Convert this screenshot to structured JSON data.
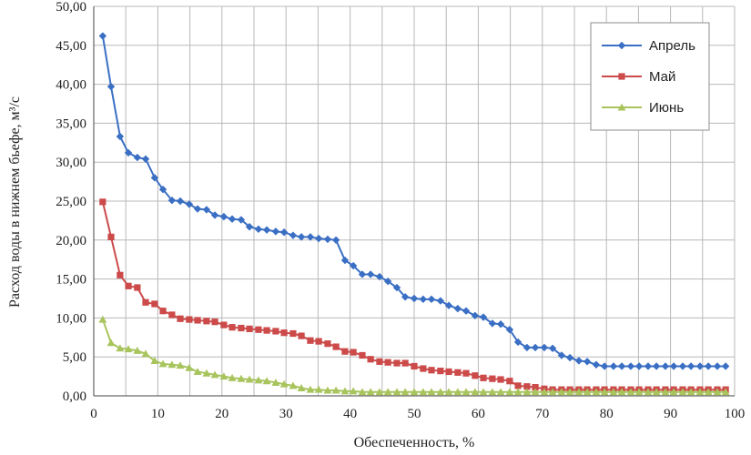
{
  "chart_data": {
    "type": "line",
    "xlabel": "Обеспеченность, %",
    "ylabel": "Расход воды в нижнем бьефе, м³/с",
    "xlim": [
      0,
      100
    ],
    "ylim": [
      0,
      50
    ],
    "grid": true,
    "legend_position": "top-right",
    "x_ticks": [
      "0",
      "10",
      "20",
      "30",
      "40",
      "50",
      "60",
      "70",
      "80",
      "90",
      "100"
    ],
    "y_ticks": [
      "0,00",
      "5,00",
      "10,00",
      "15,00",
      "20,00",
      "25,00",
      "30,00",
      "35,00",
      "40,00",
      "45,00",
      "50,00"
    ],
    "x": [
      1.4,
      2.7,
      4.1,
      5.4,
      6.8,
      8.1,
      9.5,
      10.8,
      12.2,
      13.5,
      14.9,
      16.2,
      17.6,
      18.9,
      20.3,
      21.6,
      23.0,
      24.3,
      25.7,
      27.0,
      28.4,
      29.7,
      31.1,
      32.4,
      33.8,
      35.1,
      36.5,
      37.8,
      39.2,
      40.5,
      41.9,
      43.2,
      44.6,
      45.9,
      47.3,
      48.6,
      50.0,
      51.4,
      52.7,
      54.1,
      55.4,
      56.8,
      58.1,
      59.5,
      60.8,
      62.2,
      63.5,
      64.9,
      66.2,
      67.6,
      68.9,
      70.3,
      71.6,
      73.0,
      74.3,
      75.7,
      77.0,
      78.4,
      79.7,
      81.1,
      82.4,
      83.8,
      85.1,
      86.5,
      87.8,
      89.2,
      90.5,
      91.9,
      93.2,
      94.6,
      95.9,
      97.3,
      98.6
    ],
    "series": [
      {
        "name": "Апрель",
        "color": "#3a6fc4",
        "marker": "diamond",
        "values": [
          46.2,
          39.7,
          33.3,
          31.2,
          30.6,
          30.4,
          28.0,
          26.5,
          25.1,
          25.0,
          24.6,
          24.0,
          23.9,
          23.2,
          23.0,
          22.7,
          22.6,
          21.7,
          21.4,
          21.3,
          21.1,
          21.0,
          20.6,
          20.4,
          20.4,
          20.2,
          20.1,
          20.0,
          17.4,
          16.7,
          15.6,
          15.6,
          15.3,
          14.7,
          13.9,
          12.7,
          12.5,
          12.4,
          12.4,
          12.2,
          11.6,
          11.2,
          10.9,
          10.3,
          10.1,
          9.3,
          9.2,
          8.5,
          6.9,
          6.2,
          6.2,
          6.2,
          6.1,
          5.2,
          4.9,
          4.5,
          4.4,
          4.0,
          3.8,
          3.8,
          3.8,
          3.8,
          3.8,
          3.8,
          3.8,
          3.8,
          3.8,
          3.8,
          3.8,
          3.8,
          3.8,
          3.8,
          3.8
        ]
      },
      {
        "name": "Май",
        "color": "#cc4a4a",
        "marker": "square",
        "values": [
          24.9,
          20.4,
          15.5,
          14.1,
          13.9,
          12.0,
          11.8,
          10.9,
          10.4,
          9.9,
          9.8,
          9.7,
          9.6,
          9.5,
          9.1,
          8.8,
          8.7,
          8.6,
          8.5,
          8.4,
          8.3,
          8.1,
          8.0,
          7.7,
          7.1,
          7.0,
          6.7,
          6.3,
          5.7,
          5.6,
          5.2,
          4.7,
          4.4,
          4.3,
          4.2,
          4.2,
          3.8,
          3.5,
          3.3,
          3.2,
          3.1,
          3.0,
          2.9,
          2.6,
          2.3,
          2.2,
          2.1,
          1.9,
          1.3,
          1.2,
          1.1,
          0.9,
          0.8,
          0.8,
          0.8,
          0.8,
          0.8,
          0.8,
          0.8,
          0.8,
          0.8,
          0.8,
          0.8,
          0.8,
          0.8,
          0.8,
          0.8,
          0.8,
          0.8,
          0.8,
          0.8,
          0.8,
          0.8
        ]
      },
      {
        "name": "Июнь",
        "color": "#a8c45c",
        "marker": "triangle",
        "values": [
          9.8,
          6.8,
          6.1,
          6.0,
          5.8,
          5.4,
          4.5,
          4.1,
          4.0,
          3.9,
          3.6,
          3.1,
          2.9,
          2.7,
          2.5,
          2.3,
          2.2,
          2.1,
          2.0,
          1.9,
          1.7,
          1.5,
          1.3,
          1.0,
          0.8,
          0.8,
          0.7,
          0.7,
          0.6,
          0.6,
          0.5,
          0.5,
          0.5,
          0.5,
          0.5,
          0.5,
          0.5,
          0.5,
          0.5,
          0.5,
          0.5,
          0.5,
          0.5,
          0.5,
          0.5,
          0.5,
          0.5,
          0.5,
          0.5,
          0.5,
          0.5,
          0.5,
          0.5,
          0.5,
          0.5,
          0.5,
          0.5,
          0.5,
          0.5,
          0.5,
          0.5,
          0.5,
          0.5,
          0.5,
          0.5,
          0.5,
          0.5,
          0.5,
          0.5,
          0.5,
          0.5,
          0.5,
          0.5
        ]
      }
    ]
  }
}
